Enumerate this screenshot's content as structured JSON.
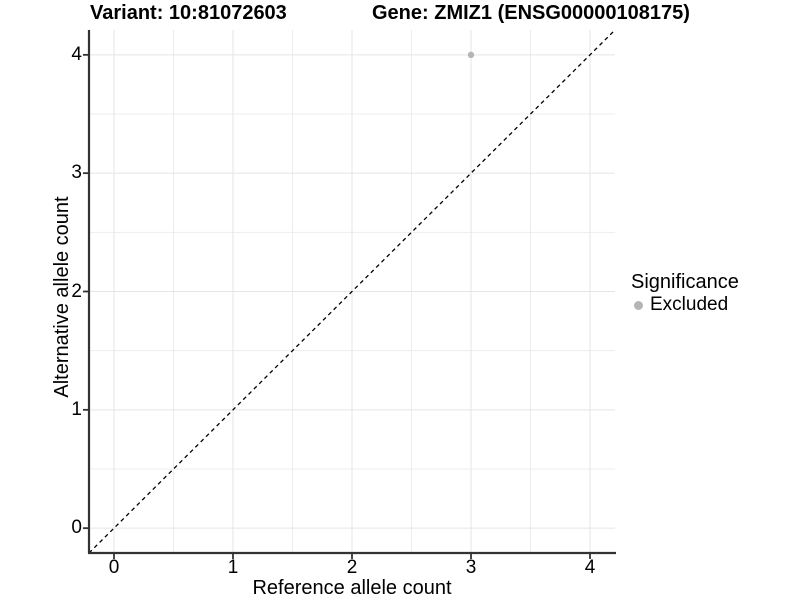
{
  "figure": {
    "title_variant": "Variant: 10:81072603",
    "title_gene": "Gene: ZMIZ1 (ENSG00000108175)"
  },
  "chart_data": {
    "type": "scatter",
    "title_variant": "Variant: 10:81072603",
    "title_gene": "Gene: ZMIZ1 (ENSG00000108175)",
    "xlabel": "Reference allele count",
    "ylabel": "Alternative allele count",
    "xlim": [
      -0.21,
      4.21
    ],
    "ylim": [
      -0.21,
      4.21
    ],
    "x_ticks": [
      0,
      1,
      2,
      3,
      4
    ],
    "y_ticks": [
      0,
      1,
      2,
      3,
      4
    ],
    "x_minor_ticks": [
      0.5,
      1.5,
      2.5,
      3.5
    ],
    "y_minor_ticks": [
      0.5,
      1.5,
      2.5,
      3.5
    ],
    "grid": true,
    "points": [
      {
        "x": 3,
        "y": 4,
        "significance": "Excluded"
      }
    ],
    "reference_line": {
      "slope": 1,
      "intercept": 0,
      "style": "dashed",
      "color": "#000000"
    },
    "legend": {
      "position": "right",
      "title": "Significance",
      "entries": [
        {
          "label": "Excluded",
          "color": "#b5b5b5"
        }
      ]
    },
    "colors": {
      "point": "#b5b5b5",
      "grid_major": "#e5e5e5",
      "grid_minor": "#ededed",
      "axis": "#333333",
      "text": "#000000",
      "background": "#ffffff"
    }
  }
}
